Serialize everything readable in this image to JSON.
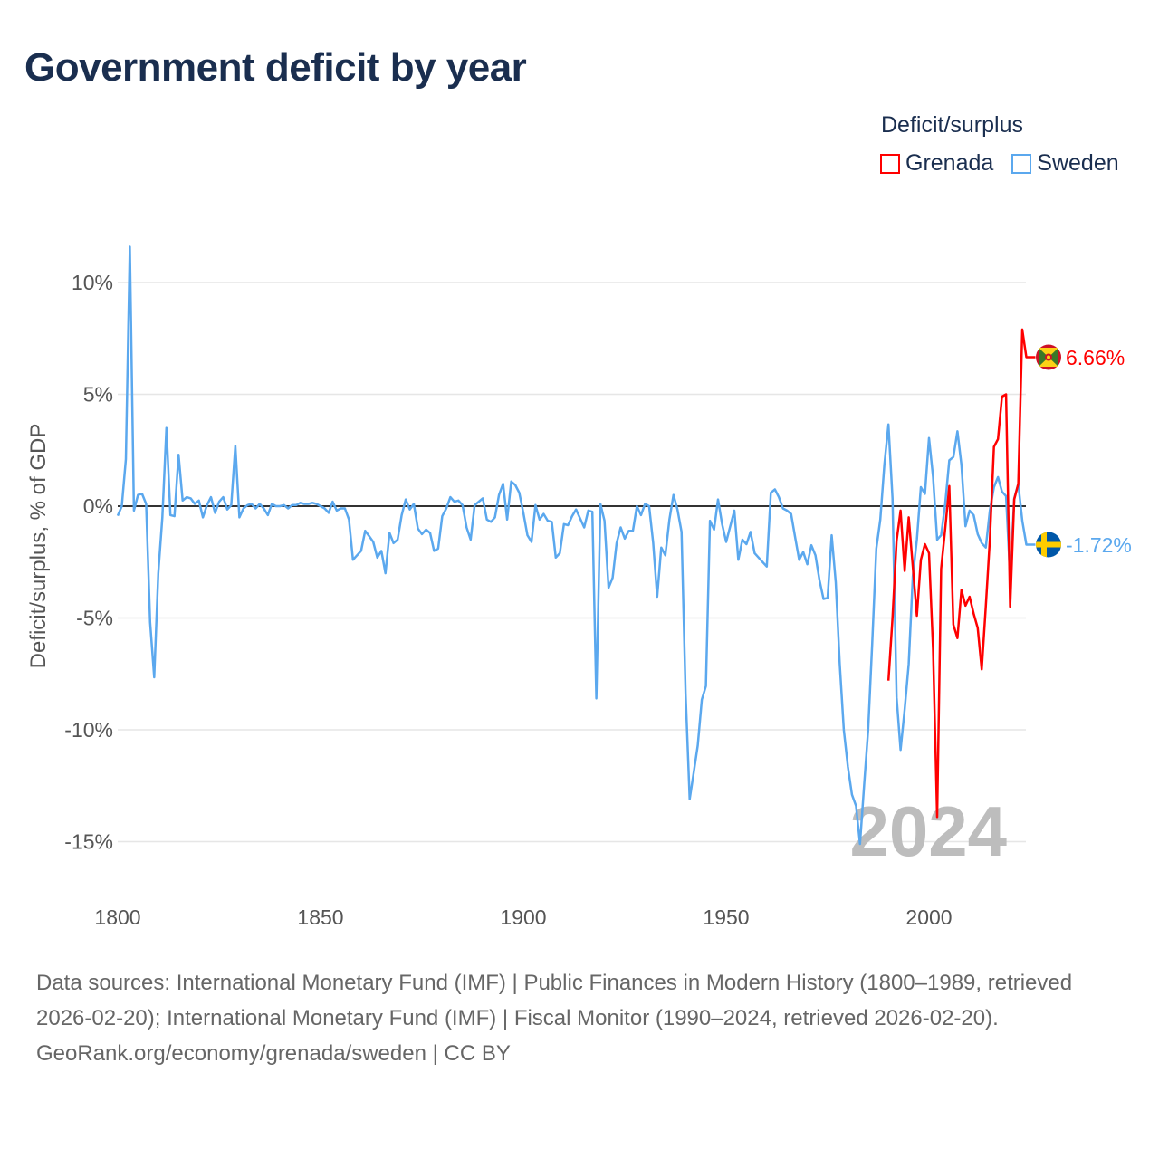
{
  "title": "Government deficit by year",
  "legend": {
    "title": "Deficit/surplus",
    "items": [
      {
        "label": "Grenada",
        "color": "#ff0000"
      },
      {
        "label": "Sweden",
        "color": "#5ba8ee"
      }
    ]
  },
  "footer": {
    "sources": "Data sources: International Monetary Fund (IMF) | Public Finances in Modern History (1800–1989, retrieved 2026-02-20); International Monetary Fund (IMF) | Fiscal Monitor (1990–2024, retrieved 2026-02-20).",
    "credit": "GeoRank.org/economy/grenada/sweden | CC BY"
  },
  "chart_data": {
    "type": "line",
    "title": "Government deficit by year",
    "xlabel": "",
    "ylabel": "Deficit/surplus, % of GDP",
    "xlim": [
      1800,
      2024
    ],
    "ylim": [
      -16.5,
      12
    ],
    "x_ticks": [
      1800,
      1850,
      1900,
      1950,
      2000
    ],
    "x_tick_labels": [
      "1800",
      "1850",
      "1900",
      "1950",
      "2000"
    ],
    "y_ticks": [
      10,
      5,
      0,
      -5,
      -10,
      -15
    ],
    "y_tick_labels": [
      "10%",
      "5%",
      "0%",
      "-5%",
      "-10%",
      "-15%"
    ],
    "grid": true,
    "legend_position": "top-right",
    "current_year_label": "2024",
    "series": [
      {
        "name": "Grenada",
        "color": "#ff0000",
        "start_year": 1990,
        "end_label": "6.66%",
        "values": [
          -7.8,
          -5.0,
          -1.55,
          -0.2,
          -2.9,
          -0.5,
          -2.7,
          -4.9,
          -2.4,
          -1.7,
          -2.1,
          -6.4,
          -13.9,
          -2.8,
          -1.0,
          0.9,
          -5.3,
          -5.9,
          -3.75,
          -4.45,
          -4.05,
          -4.8,
          -5.45,
          -7.3,
          -4.5,
          -1.5,
          2.65,
          3.0,
          4.9,
          5.0,
          -4.5,
          0.3,
          1.0,
          7.9,
          6.66
        ]
      },
      {
        "name": "Sweden",
        "color": "#5ba8ee",
        "start_year": 1800,
        "end_label": "-1.72%",
        "values": [
          -0.43,
          0,
          2.1,
          11.6,
          -0.2,
          0.5,
          0.55,
          0.1,
          -5.2,
          -7.65,
          -3.0,
          -0.5,
          3.5,
          -0.4,
          -0.45,
          2.3,
          0.25,
          0.4,
          0.35,
          0.1,
          0.25,
          -0.5,
          0.05,
          0.4,
          -0.3,
          0.2,
          0.4,
          -0.15,
          0.05,
          2.7,
          -0.5,
          -0.1,
          0.05,
          0.1,
          -0.1,
          0.1,
          -0.1,
          -0.4,
          0.1,
          0,
          0,
          0.05,
          -0.1,
          0.05,
          0.05,
          0.15,
          0.1,
          0.1,
          0.15,
          0.1,
          0,
          -0.1,
          -0.3,
          0.2,
          -0.2,
          -0.1,
          -0.1,
          -0.6,
          -2.4,
          -2.2,
          -2.0,
          -1.1,
          -1.35,
          -1.6,
          -2.3,
          -2.0,
          -3.0,
          -1.2,
          -1.65,
          -1.5,
          -0.4,
          0.3,
          -0.15,
          0.1,
          -1.0,
          -1.25,
          -1.05,
          -1.2,
          -2.0,
          -1.9,
          -0.45,
          -0.1,
          0.4,
          0.2,
          0.25,
          0.05,
          -0.95,
          -1.5,
          0.05,
          0.2,
          0.35,
          -0.6,
          -0.7,
          -0.5,
          0.5,
          1.0,
          -0.6,
          1.1,
          0.95,
          0.6,
          -0.3,
          -1.3,
          -1.6,
          0.05,
          -0.6,
          -0.35,
          -0.65,
          -0.7,
          -2.3,
          -2.1,
          -0.8,
          -0.85,
          -0.45,
          -0.15,
          -0.55,
          -0.95,
          -0.2,
          -0.25,
          -8.6,
          0.1,
          -0.65,
          -3.65,
          -3.2,
          -1.65,
          -0.95,
          -1.45,
          -1.1,
          -1.1,
          0,
          -0.4,
          0.1,
          0,
          -1.65,
          -4.05,
          -1.85,
          -2.2,
          -0.6,
          0.5,
          -0.15,
          -1.15,
          -8.4,
          -13.1,
          -11.9,
          -10.7,
          -8.65,
          -8.05,
          -0.65,
          -1.05,
          0.3,
          -0.8,
          -1.6,
          -0.9,
          -0.2,
          -2.4,
          -1.5,
          -1.7,
          -1.15,
          -2.1,
          -2.3,
          -2.5,
          -2.7,
          0.6,
          0.75,
          0.4,
          -0.1,
          -0.2,
          -0.35,
          -1.4,
          -2.4,
          -2.05,
          -2.6,
          -1.75,
          -2.2,
          -3.3,
          -4.15,
          -4.1,
          -1.3,
          -3.4,
          -7.05,
          -10.0,
          -11.65,
          -12.9,
          -13.4,
          -15.1,
          -12.5,
          -10.0,
          -6.1,
          -1.9,
          -0.6,
          1.85,
          3.65,
          0.35,
          -8.55,
          -10.9,
          -9.1,
          -7.05,
          -3.15,
          -1.5,
          0.85,
          0.55,
          3.05,
          1.3,
          -1.5,
          -1.3,
          0.1,
          2.05,
          2.2,
          3.35,
          1.85,
          -0.9,
          -0.2,
          -0.4,
          -1.25,
          -1.65,
          -1.85,
          -0.2,
          0.85,
          1.3,
          0.65,
          0.45,
          -3.2,
          0.35,
          1.0,
          -0.65,
          -1.72
        ]
      }
    ]
  }
}
